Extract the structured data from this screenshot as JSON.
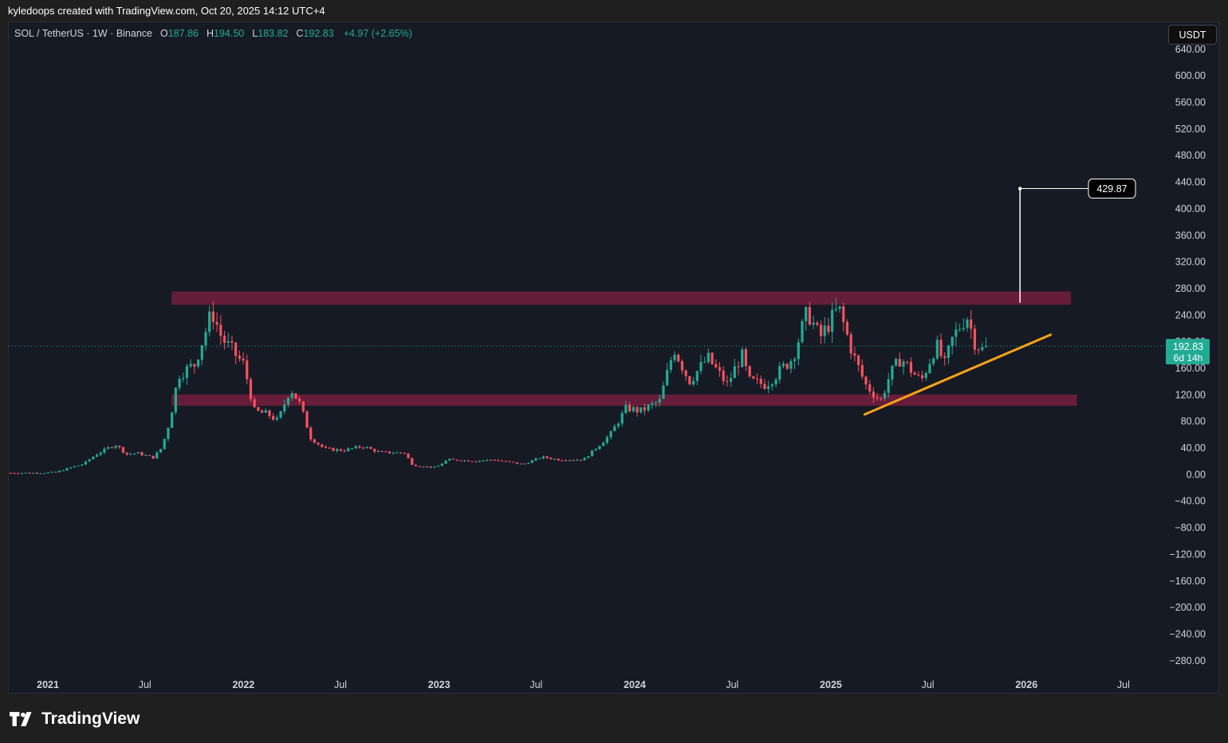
{
  "header": {
    "attribution": "kyledoops created with TradingView.com, Oct 20, 2025 14:12 UTC+4"
  },
  "symbol_bar": {
    "symbol": "SOL / TetherUS · 1W · Binance",
    "open_label": "O",
    "open": "187.86",
    "high_label": "H",
    "high": "194.50",
    "low_label": "L",
    "low": "183.82",
    "close_label": "C",
    "close": "192.83",
    "change": "+4.97 (+2.65%)"
  },
  "currency_button": "USDT",
  "price_tag": {
    "price": "192.83",
    "countdown": "6d 14h"
  },
  "target_label": "429.87",
  "footer": {
    "brand": "TradingView"
  },
  "colors": {
    "background": "#161a25",
    "up": "#22ab94",
    "down": "#f7525f",
    "zone": "#6e1d3b",
    "trendline": "#f7a21b",
    "price_line": "#22ab94",
    "measure": "#ffffff"
  },
  "chart_data": {
    "type": "candlestick",
    "symbol": "SOL / TetherUS",
    "interval": "1W",
    "exchange": "Binance",
    "ylim": [
      -300,
      680
    ],
    "y_ticks": [
      640,
      600,
      560,
      520,
      480,
      440,
      400,
      360,
      320,
      280,
      240,
      200,
      160,
      120,
      80,
      40,
      0,
      -40,
      -80,
      -120,
      -160,
      -200,
      -240,
      -280
    ],
    "y_tick_labels": [
      "640.00",
      "600.00",
      "560.00",
      "520.00",
      "480.00",
      "440.00",
      "400.00",
      "360.00",
      "320.00",
      "280.00",
      "240.00",
      "200.00",
      "160.00",
      "120.00",
      "80.00",
      "40.00",
      "0.00",
      "−40.00",
      "−80.00",
      "−120.00",
      "−160.00",
      "−200.00",
      "−240.00",
      "−280.00"
    ],
    "x_ticks": [
      {
        "date": "2021-01-01",
        "label": "2021",
        "major": true
      },
      {
        "date": "2021-07-01",
        "label": "Jul",
        "major": false
      },
      {
        "date": "2022-01-01",
        "label": "2022",
        "major": true
      },
      {
        "date": "2022-07-01",
        "label": "Jul",
        "major": false
      },
      {
        "date": "2023-01-01",
        "label": "2023",
        "major": true
      },
      {
        "date": "2023-07-01",
        "label": "Jul",
        "major": false
      },
      {
        "date": "2024-01-01",
        "label": "2024",
        "major": true
      },
      {
        "date": "2024-07-01",
        "label": "Jul",
        "major": false
      },
      {
        "date": "2025-01-01",
        "label": "2025",
        "major": true
      },
      {
        "date": "2025-07-01",
        "label": "Jul",
        "major": false
      },
      {
        "date": "2026-01-01",
        "label": "2026",
        "major": true
      },
      {
        "date": "2026-07-01",
        "label": "Jul",
        "major": false
      }
    ],
    "xlim": [
      "2020-10-20",
      "2026-09-15"
    ],
    "last_close": 192.83,
    "path_anchors": [
      [
        "2020-10-20",
        2
      ],
      [
        "2020-12-20",
        2
      ],
      [
        "2021-01-20",
        3
      ],
      [
        "2021-02-15",
        10
      ],
      [
        "2021-03-10",
        15
      ],
      [
        "2021-04-05",
        30
      ],
      [
        "2021-05-10",
        45
      ],
      [
        "2021-06-01",
        30
      ],
      [
        "2021-06-20",
        32
      ],
      [
        "2021-07-20",
        25
      ],
      [
        "2021-08-05",
        40
      ],
      [
        "2021-08-20",
        80
      ],
      [
        "2021-09-05",
        150
      ],
      [
        "2021-10-05",
        165
      ],
      [
        "2021-11-07",
        245
      ],
      [
        "2021-11-25",
        205
      ],
      [
        "2022-01-05",
        165
      ],
      [
        "2022-01-25",
        95
      ],
      [
        "2022-02-20",
        90
      ],
      [
        "2022-03-10",
        80
      ],
      [
        "2022-04-02",
        130
      ],
      [
        "2022-04-20",
        105
      ],
      [
        "2022-05-10",
        55
      ],
      [
        "2022-06-05",
        38
      ],
      [
        "2022-07-10",
        36
      ],
      [
        "2022-08-15",
        42
      ],
      [
        "2022-09-15",
        33
      ],
      [
        "2022-11-05",
        32
      ],
      [
        "2022-11-12",
        14
      ],
      [
        "2022-12-30",
        10
      ],
      [
        "2023-01-20",
        22
      ],
      [
        "2023-02-15",
        21
      ],
      [
        "2023-03-15",
        20
      ],
      [
        "2023-04-15",
        22
      ],
      [
        "2023-06-10",
        15
      ],
      [
        "2023-07-15",
        26
      ],
      [
        "2023-08-15",
        22
      ],
      [
        "2023-10-01",
        22
      ],
      [
        "2023-10-25",
        40
      ],
      [
        "2023-11-20",
        60
      ],
      [
        "2023-12-20",
        100
      ],
      [
        "2024-01-15",
        95
      ],
      [
        "2024-02-20",
        110
      ],
      [
        "2024-03-18",
        190
      ],
      [
        "2024-04-15",
        140
      ],
      [
        "2024-05-20",
        175
      ],
      [
        "2024-06-25",
        135
      ],
      [
        "2024-07-22",
        180
      ],
      [
        "2024-08-05",
        140
      ],
      [
        "2024-09-05",
        135
      ],
      [
        "2024-10-01",
        155
      ],
      [
        "2024-10-25",
        175
      ],
      [
        "2024-11-22",
        245
      ],
      [
        "2024-12-15",
        205
      ],
      [
        "2025-01-19",
        250
      ],
      [
        "2025-02-15",
        180
      ],
      [
        "2025-03-10",
        135
      ],
      [
        "2025-04-07",
        110
      ],
      [
        "2025-04-25",
        150
      ],
      [
        "2025-05-15",
        175
      ],
      [
        "2025-06-10",
        150
      ],
      [
        "2025-06-22",
        140
      ],
      [
        "2025-07-20",
        195
      ],
      [
        "2025-08-05",
        165
      ],
      [
        "2025-08-20",
        205
      ],
      [
        "2025-09-15",
        240
      ],
      [
        "2025-09-30",
        200
      ],
      [
        "2025-10-13",
        187
      ],
      [
        "2025-10-20",
        192.83
      ]
    ],
    "zones": [
      {
        "name": "resistance-zone",
        "from": "2021-08-20",
        "to": "2026-03-25",
        "low": 255,
        "high": 275
      },
      {
        "name": "support-zone",
        "from": "2021-08-20",
        "to": "2026-04-05",
        "low": 103,
        "high": 120
      }
    ],
    "trendline": {
      "from": [
        "2025-03-05",
        90
      ],
      "to": [
        "2026-02-15",
        210
      ]
    },
    "measure": {
      "date": "2025-12-20",
      "from": 258,
      "to": 429.87,
      "label": "429.87"
    }
  }
}
